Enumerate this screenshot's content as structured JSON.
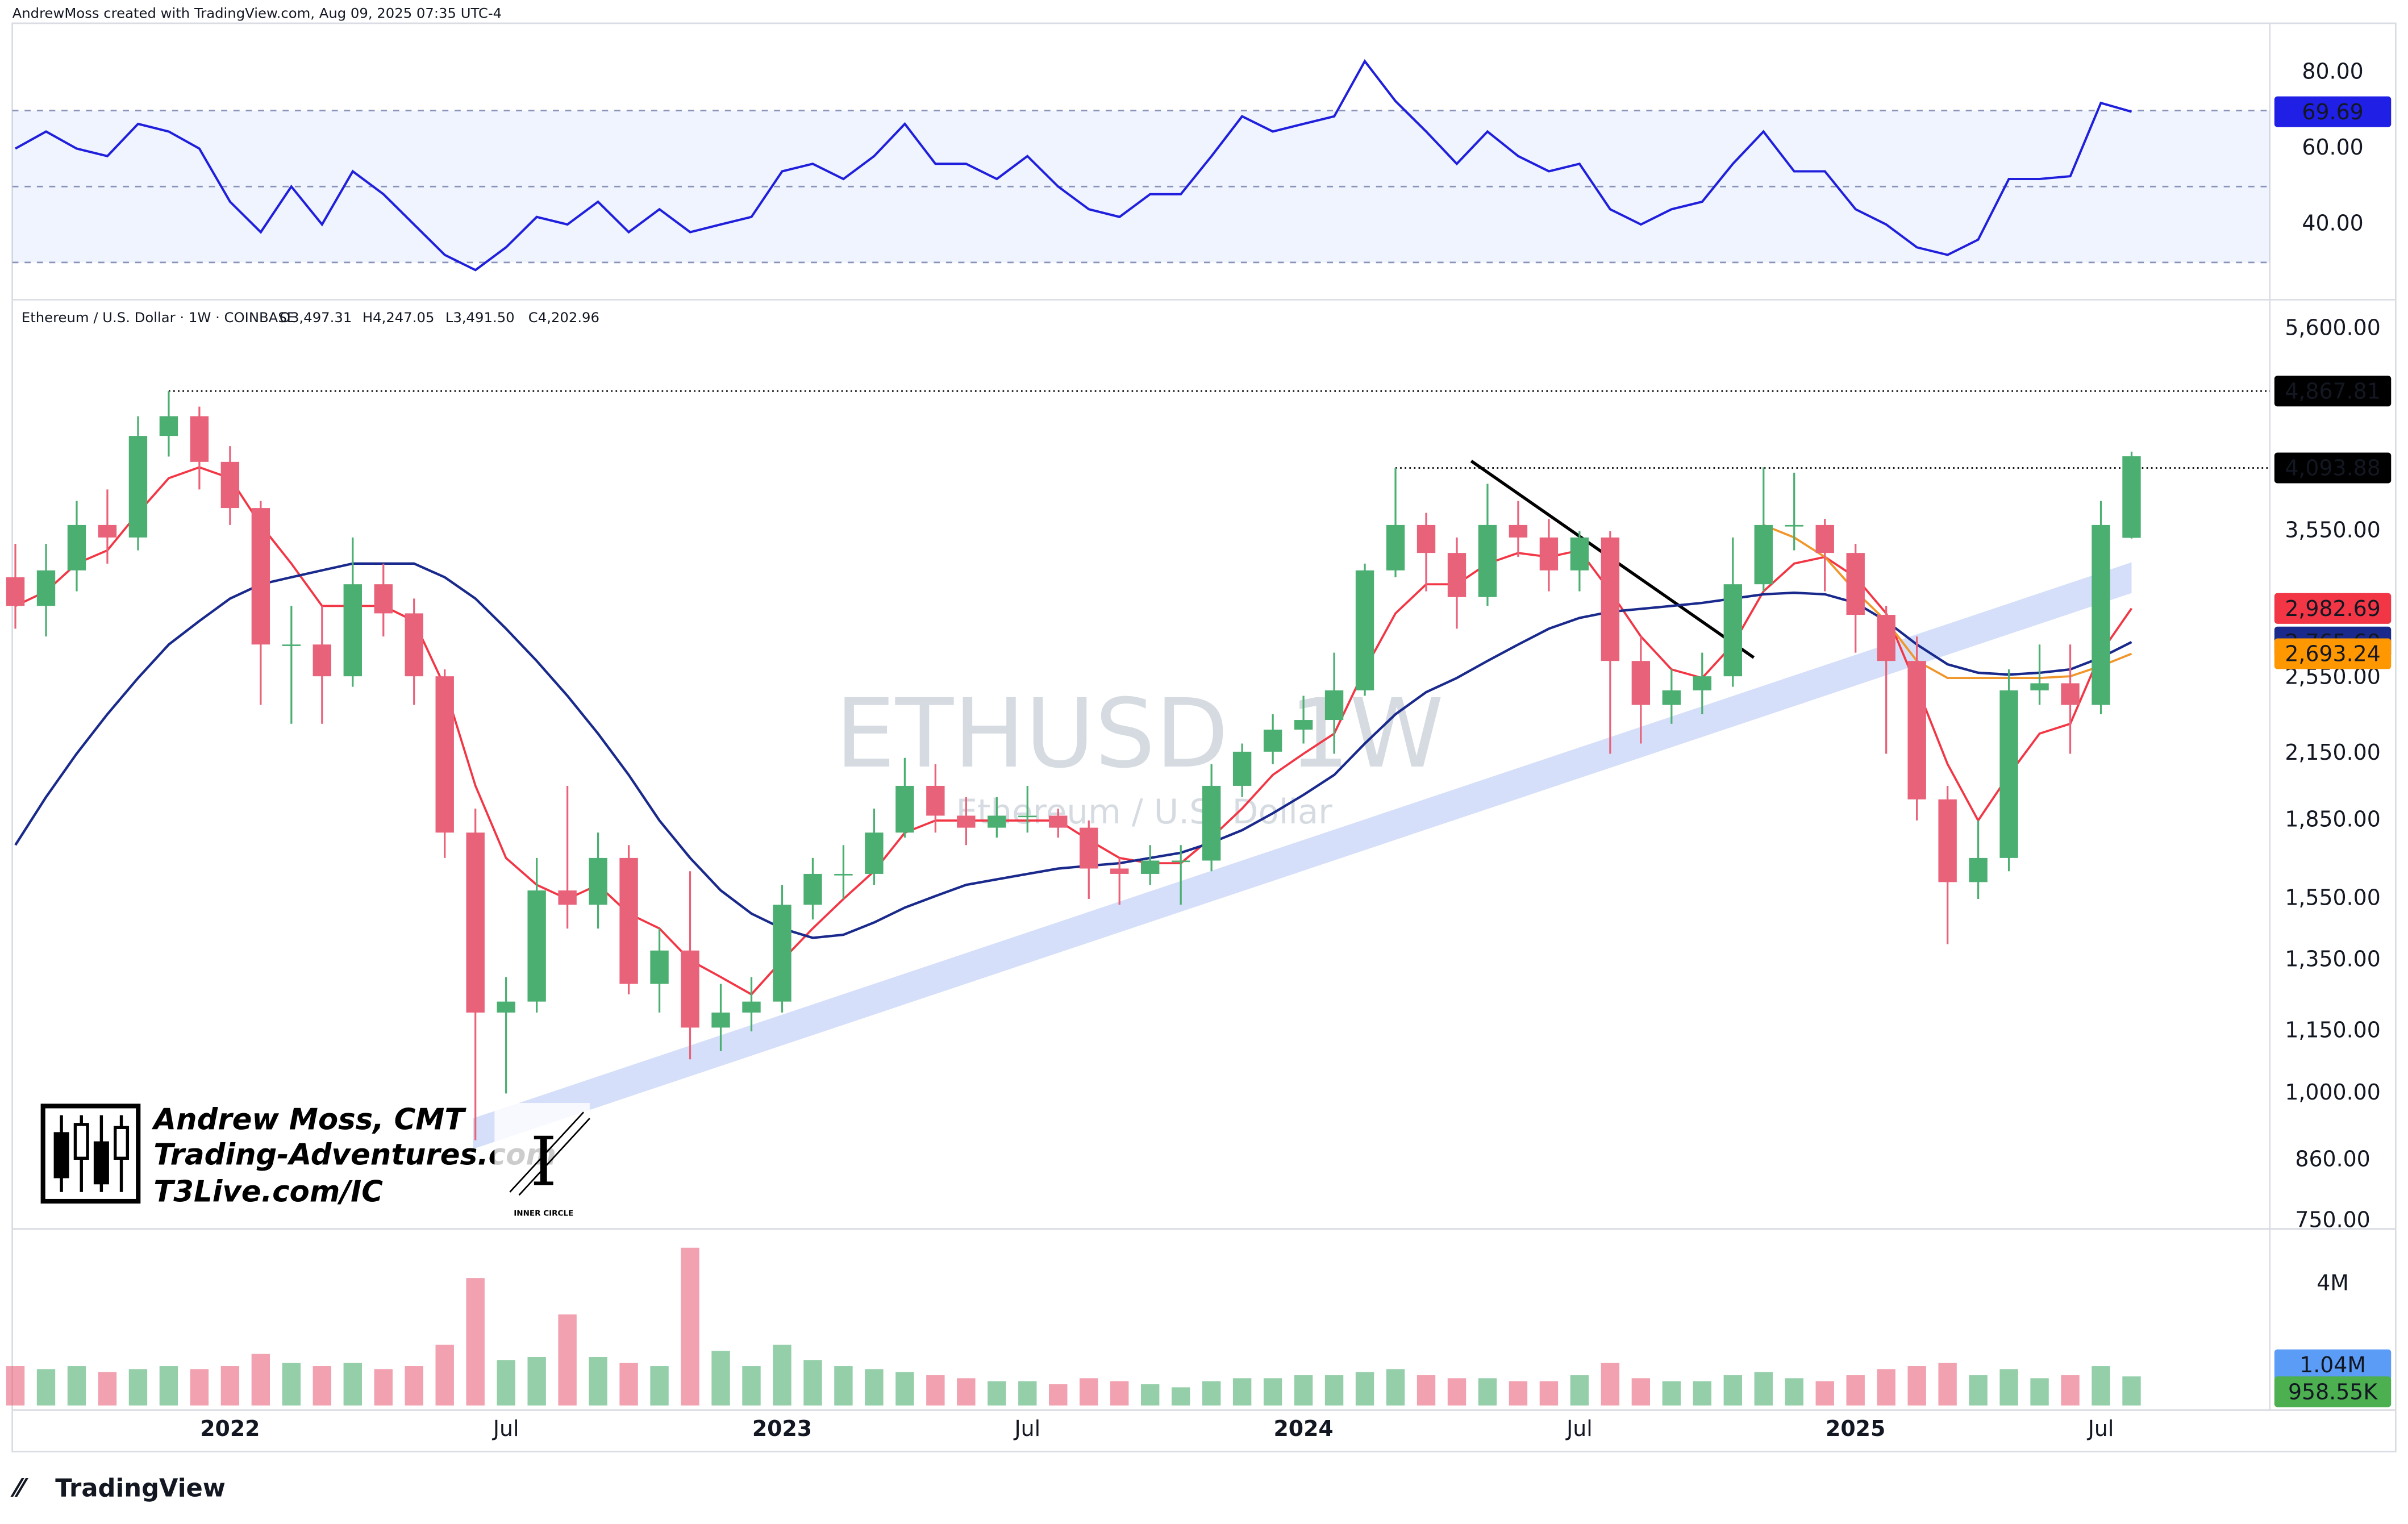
{
  "header": {
    "created": "AndrewMoss created with TradingView.com, Aug 09, 2025 07:35 UTC-4",
    "symbol": "Ethereum / U.S. Dollar · 1W · COINBASE",
    "ohlc": [
      "O3,497.31",
      "H4,247.05",
      "L3,491.50",
      "C4,202.96"
    ]
  },
  "watermark": {
    "symbol": "ETHUSD, 1W",
    "description": "Ethereum / U.S. Dollar"
  },
  "branding": {
    "name": "Andrew Moss, CMT",
    "site": "Trading-Adventures.com",
    "link": "T3Live.com/IC",
    "badge": "INNER CIRCLE"
  },
  "footer": {
    "logo": "TradingView"
  },
  "chart_data": [
    {
      "type": "candlestick",
      "log_scale": true,
      "grid": false,
      "up_color": "#4caf72",
      "down_color": "#e8627a",
      "categories": [
        null,
        null,
        null,
        null,
        null,
        null,
        null,
        "2022",
        null,
        null,
        null,
        null,
        null,
        null,
        null,
        null,
        "Jul",
        null,
        null,
        null,
        null,
        null,
        null,
        null,
        null,
        "2023",
        null,
        null,
        null,
        null,
        null,
        null,
        null,
        "Jul",
        null,
        null,
        null,
        null,
        null,
        null,
        null,
        null,
        "2024",
        null,
        null,
        null,
        null,
        null,
        null,
        null,
        null,
        "Jul",
        null,
        null,
        null,
        null,
        null,
        null,
        null,
        null,
        "2025",
        null,
        null,
        null,
        null,
        null,
        null,
        null,
        "Jul",
        null
      ],
      "open": [
        3200,
        3000,
        3250,
        3600,
        3500,
        4400,
        4600,
        4150,
        3740,
        2750,
        2750,
        2560,
        3150,
        2950,
        2560,
        1800,
        1200,
        1230,
        1580,
        1530,
        1700,
        1280,
        1380,
        1160,
        1200,
        1230,
        1530,
        1640,
        1640,
        1800,
        2000,
        1870,
        1820,
        1870,
        1870,
        1820,
        1660,
        1640,
        1690,
        1690,
        2000,
        2160,
        2270,
        2320,
        2480,
        3250,
        3600,
        3380,
        3060,
        3600,
        3500,
        3250,
        3500,
        2650,
        2400,
        2480,
        2560,
        3150,
        3600,
        3600,
        3380,
        2940,
        2650,
        1940,
        1610,
        1700,
        2480,
        2520,
        2400,
        3497.31
      ],
      "high": [
        3450,
        3450,
        3800,
        3900,
        4600,
        4867.81,
        4700,
        4300,
        3800,
        3000,
        3000,
        3500,
        3300,
        3050,
        2600,
        1900,
        1300,
        1700,
        2000,
        1800,
        1750,
        1450,
        1650,
        1280,
        1300,
        1600,
        1700,
        1750,
        1900,
        2130,
        2100,
        1950,
        1950,
        2000,
        1900,
        1850,
        1700,
        1750,
        1750,
        2100,
        2200,
        2350,
        2450,
        2700,
        3300,
        4093.88,
        3700,
        3500,
        3950,
        3800,
        3650,
        3550,
        3550,
        2800,
        2600,
        2700,
        3500,
        4100,
        4050,
        3650,
        3450,
        3000,
        2800,
        2000,
        1850,
        2600,
        2750,
        2750,
        3800,
        4247.05
      ],
      "low": [
        2850,
        2800,
        3100,
        3300,
        3400,
        4200,
        3900,
        3600,
        2400,
        2300,
        2300,
        2500,
        2800,
        2400,
        1700,
        900,
        1000,
        1200,
        1450,
        1450,
        1250,
        1200,
        1080,
        1100,
        1150,
        1200,
        1480,
        1550,
        1600,
        1780,
        1800,
        1750,
        1780,
        1800,
        1780,
        1550,
        1530,
        1600,
        1530,
        1650,
        1950,
        2100,
        2200,
        2150,
        2450,
        3200,
        3100,
        2850,
        3000,
        3350,
        3100,
        3100,
        2150,
        2200,
        2300,
        2350,
        2500,
        3100,
        3400,
        3100,
        2700,
        2150,
        1850,
        1400,
        1550,
        1650,
        2400,
        2150,
        2350,
        3491.5
      ],
      "close": [
        3000,
        3250,
        3600,
        3500,
        4400,
        4600,
        4150,
        3740,
        2750,
        2750,
        2560,
        3150,
        2950,
        2560,
        1800,
        1200,
        1230,
        1580,
        1530,
        1700,
        1280,
        1380,
        1160,
        1200,
        1230,
        1530,
        1640,
        1640,
        1800,
        2000,
        1870,
        1820,
        1870,
        1870,
        1820,
        1660,
        1640,
        1690,
        1690,
        2000,
        2160,
        2270,
        2320,
        2480,
        3250,
        3600,
        3380,
        3060,
        3600,
        3500,
        3250,
        3500,
        2650,
        2400,
        2480,
        2560,
        3150,
        3600,
        3600,
        3380,
        2940,
        2650,
        1940,
        1610,
        1700,
        2480,
        2520,
        2400,
        3600,
        4202.96
      ],
      "overlays": {
        "ema": {
          "color": "#f23645",
          "values": [
            3000,
            3100,
            3300,
            3400,
            3700,
            4000,
            4100,
            4000,
            3600,
            3300,
            3000,
            3000,
            3000,
            2900,
            2500,
            2000,
            1700,
            1600,
            1550,
            1600,
            1500,
            1450,
            1350,
            1300,
            1250,
            1350,
            1450,
            1550,
            1650,
            1800,
            1850,
            1850,
            1850,
            1850,
            1850,
            1770,
            1700,
            1680,
            1680,
            1780,
            1900,
            2050,
            2150,
            2250,
            2600,
            2950,
            3150,
            3150,
            3300,
            3380,
            3350,
            3400,
            3100,
            2800,
            2600,
            2550,
            2750,
            3100,
            3300,
            3350,
            3200,
            2950,
            2500,
            2100,
            1850,
            2050,
            2250,
            2300,
            2700,
            2982.69
          ]
        },
        "sma": {
          "color": "#1a2a8c",
          "values": [
            1750,
            1950,
            2150,
            2350,
            2550,
            2750,
            2900,
            3050,
            3150,
            3200,
            3250,
            3300,
            3300,
            3300,
            3200,
            3050,
            2850,
            2650,
            2450,
            2250,
            2050,
            1850,
            1700,
            1580,
            1500,
            1450,
            1420,
            1430,
            1470,
            1520,
            1560,
            1600,
            1620,
            1640,
            1660,
            1670,
            1680,
            1700,
            1720,
            1760,
            1810,
            1880,
            1960,
            2050,
            2200,
            2350,
            2470,
            2550,
            2650,
            2750,
            2850,
            2920,
            2960,
            2980,
            3000,
            3020,
            3050,
            3080,
            3090,
            3080,
            3020,
            2900,
            2750,
            2630,
            2580,
            2570,
            2580,
            2600,
            2670,
            2765.6
          ]
        },
        "vwap": {
          "color": "#f0962a",
          "values": [
            null,
            null,
            null,
            null,
            null,
            null,
            null,
            null,
            null,
            null,
            null,
            null,
            null,
            null,
            null,
            null,
            null,
            null,
            null,
            null,
            null,
            null,
            null,
            null,
            null,
            null,
            null,
            null,
            null,
            null,
            null,
            null,
            null,
            null,
            null,
            null,
            null,
            null,
            null,
            null,
            null,
            null,
            null,
            null,
            null,
            null,
            null,
            null,
            null,
            null,
            null,
            null,
            null,
            null,
            null,
            null,
            null,
            3600,
            3500,
            3350,
            3100,
            2900,
            2650,
            2550,
            2550,
            2550,
            2550,
            2560,
            2620,
            2693.24
          ]
        }
      },
      "ylim": [
        737,
        5878
      ],
      "yticks": [
        {
          "value": 5600,
          "label": "5,600.00"
        },
        {
          "value": 3550,
          "label": "3,550.00"
        },
        {
          "value": 2550,
          "label": "2,550.00"
        },
        {
          "value": 2150,
          "label": "2,150.00"
        },
        {
          "value": 1850,
          "label": "1,850.00"
        },
        {
          "value": 1550,
          "label": "1,550.00"
        },
        {
          "value": 1350,
          "label": "1,350.00"
        },
        {
          "value": 1150,
          "label": "1,150.00"
        },
        {
          "value": 1000,
          "label": "1,000.00"
        },
        {
          "value": 860,
          "label": "860.00"
        },
        {
          "value": 750,
          "label": "750.00"
        }
      ],
      "levels": [
        {
          "value": 4867.81,
          "label": "4,867.81",
          "color": "#000000"
        },
        {
          "value": 4093.88,
          "label": "4,093.88",
          "color": "#000000"
        }
      ],
      "tags": [
        {
          "value": 2982.69,
          "label": "2,982.69",
          "color": "#f23645"
        },
        {
          "value": 2765.6,
          "label": "2,765.60",
          "color": "#1a2a8c"
        },
        {
          "value": 2693.24,
          "label": "2,693.24",
          "color": "#ff9800"
        }
      ]
    },
    {
      "type": "line",
      "color": "#1f1fdc",
      "tag_color": "#1f1fe6",
      "values": [
        60,
        64.5,
        60,
        58,
        66.5,
        64.5,
        60,
        46,
        38,
        50,
        40,
        54,
        48,
        40,
        32,
        28,
        34,
        42,
        40,
        46,
        38,
        44,
        38,
        40,
        42,
        54,
        56,
        52,
        58,
        66.5,
        56,
        56,
        52,
        58,
        50,
        44,
        42,
        48,
        48,
        58,
        68.5,
        64.5,
        66.5,
        68.5,
        83,
        72.5,
        64.5,
        56,
        64.5,
        58,
        54,
        56,
        44,
        40,
        44,
        46,
        56,
        64.5,
        54,
        54,
        44,
        40,
        34,
        32,
        36,
        52,
        52,
        52.7,
        72,
        69.69
      ],
      "ylim": [
        21,
        93
      ],
      "yticks": [
        {
          "value": 80,
          "label": "80.00"
        },
        {
          "value": 60,
          "label": "60.00"
        },
        {
          "value": 40,
          "label": "40.00"
        }
      ],
      "levels": [
        30,
        50,
        70
      ]
    },
    {
      "type": "bar",
      "values": [
        1300000,
        1200000,
        1300000,
        1100000,
        1200000,
        1300000,
        1200000,
        1300000,
        1700000,
        1400000,
        1300000,
        1400000,
        1200000,
        1300000,
        2000000,
        4200000,
        1500000,
        1600000,
        3000000,
        1600000,
        1400000,
        1300000,
        5200000,
        1800000,
        1300000,
        2000000,
        1500000,
        1300000,
        1200000,
        1100000,
        1000000,
        900000,
        800000,
        800000,
        700000,
        900000,
        800000,
        700000,
        600000,
        800000,
        900000,
        900000,
        1000000,
        1000000,
        1100000,
        1200000,
        1000000,
        900000,
        900000,
        800000,
        800000,
        1000000,
        1400000,
        900000,
        800000,
        800000,
        1000000,
        1100000,
        900000,
        800000,
        1000000,
        1200000,
        1300000,
        1400000,
        1000000,
        1200000,
        900000,
        1000000,
        1300000,
        958550
      ],
      "ylim": [
        0,
        5820000
      ],
      "yticks": [
        {
          "value": 4000000,
          "label": "4M"
        }
      ],
      "tags": [
        {
          "value": 1040000,
          "label": "1.04M",
          "color": "#5b9cf6"
        },
        {
          "value": 958550,
          "label": "958.55K",
          "color": "#4caf50"
        }
      ]
    }
  ]
}
